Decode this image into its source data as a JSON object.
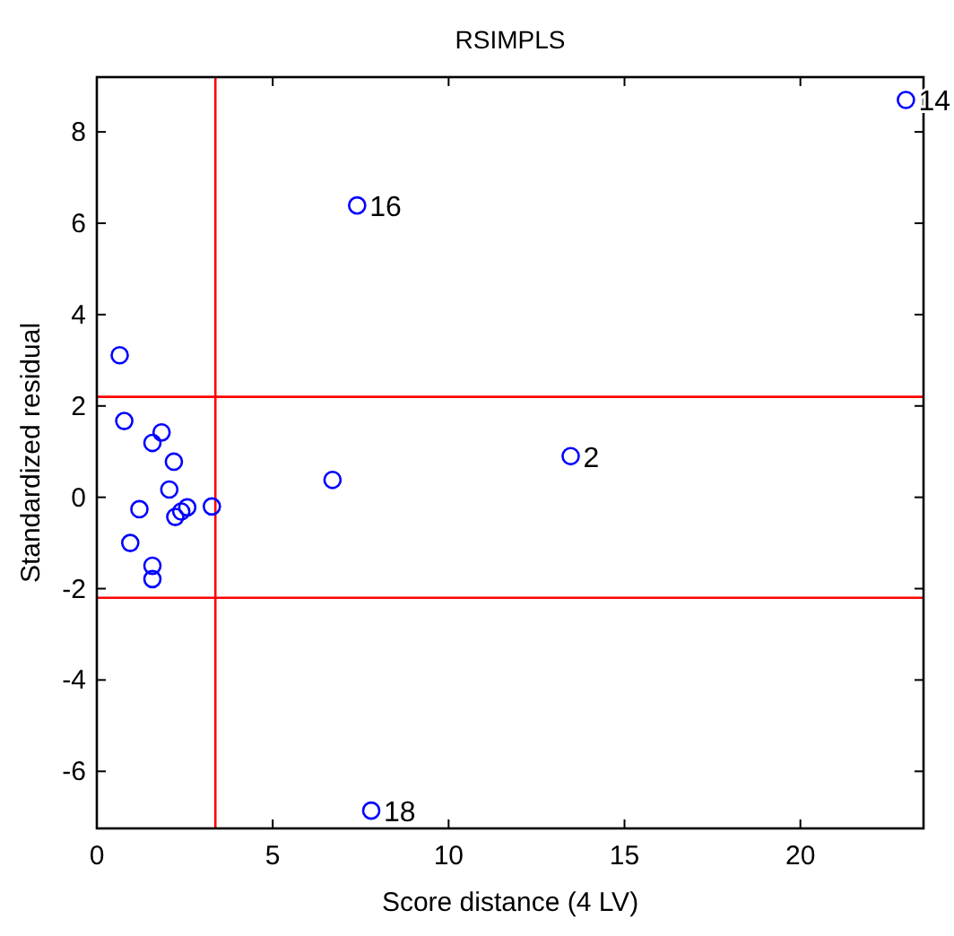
{
  "chart_data": {
    "type": "scatter",
    "title": "RSIMPLS",
    "xlabel": "Score distance (4 LV)",
    "ylabel": "Standardized residual",
    "marker": "circle",
    "grid": false,
    "xlim": [
      0,
      23.5
    ],
    "xticks": [
      0,
      5,
      10,
      15,
      20
    ],
    "ylim": [
      -7.25,
      9.2
    ],
    "yticks": [
      -6,
      -4,
      -2,
      0,
      2,
      4,
      6,
      8
    ],
    "series": [
      {
        "color": "#0000ff",
        "x": [
          0.65,
          0.78,
          1.84,
          1.58,
          2.19,
          2.06,
          1.21,
          2.57,
          2.4,
          2.23,
          3.27,
          0.95,
          1.58,
          1.58,
          6.7,
          13.47,
          7.4,
          23.0,
          7.8
        ],
        "values": [
          3.11,
          1.67,
          1.42,
          1.19,
          0.78,
          0.17,
          -0.26,
          -0.22,
          -0.31,
          -0.43,
          -0.2,
          -1.0,
          -1.5,
          -1.79,
          0.38,
          0.9,
          6.39,
          8.7,
          -6.86
        ]
      }
    ],
    "ref_lines": [
      {
        "axis": "x",
        "value": 3.37,
        "color": "#ff0000"
      },
      {
        "axis": "y",
        "value": 2.2,
        "color": "#ff0000"
      },
      {
        "axis": "y",
        "value": -2.2,
        "color": "#ff0000"
      }
    ],
    "annotations": [
      {
        "text": "2",
        "x": 13.47,
        "y": 0.9
      },
      {
        "text": "16",
        "x": 7.4,
        "y": 6.39
      },
      {
        "text": "14",
        "x": 23.0,
        "y": 8.7
      },
      {
        "text": "18",
        "x": 7.8,
        "y": -6.86
      }
    ]
  }
}
